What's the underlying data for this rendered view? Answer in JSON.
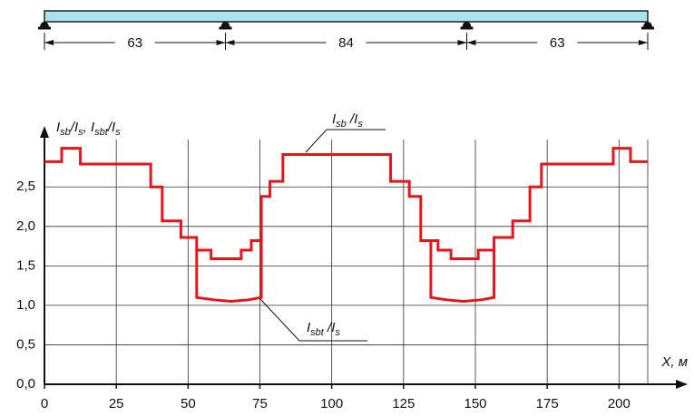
{
  "chart_data": {
    "type": "line",
    "step": true,
    "beam": {
      "spans": [
        63,
        84,
        63
      ],
      "color": "#a9e4ee"
    },
    "y_label_parts": [
      {
        "t": "I"
      },
      {
        "t": "sb",
        "sub": true
      },
      {
        "t": "/I"
      },
      {
        "t": "s",
        "sub": true
      },
      {
        "t": ", I"
      },
      {
        "t": "sbt",
        "sub": true
      },
      {
        "t": "/I"
      },
      {
        "t": "s",
        "sub": true
      }
    ],
    "x_label": "X, м",
    "xlim": [
      0,
      210
    ],
    "ylim": [
      0,
      3.1
    ],
    "xticks": [
      0,
      25,
      50,
      75,
      100,
      125,
      150,
      175,
      200
    ],
    "yticks": [
      {
        "value": 0,
        "label": "0,0"
      },
      {
        "value": 0.5,
        "label": "0,5"
      },
      {
        "value": 1,
        "label": "1,0"
      },
      {
        "value": 1.5,
        "label": "1,5"
      },
      {
        "value": 2,
        "label": "2,0"
      },
      {
        "value": 2.5,
        "label": "2,5"
      }
    ],
    "grid": true,
    "series": [
      {
        "name_parts": [
          {
            "t": "I"
          },
          {
            "t": "sb",
            "sub": true
          },
          {
            "t": " /I"
          },
          {
            "t": "s",
            "sub": true
          }
        ],
        "color": "#e3161b",
        "x": [
          0,
          6,
          6,
          12.5,
          12.5,
          37,
          37,
          41,
          41,
          47.5,
          47.5,
          53,
          53,
          58,
          58,
          68.5,
          68.5,
          72,
          72,
          75.5,
          75.5,
          78.5,
          78.5,
          83,
          83,
          120.5,
          120.5,
          127,
          127,
          131,
          131,
          137,
          137,
          141.5,
          141.5,
          151,
          151,
          156.5,
          156.5,
          163,
          163,
          169,
          169,
          173,
          173,
          198,
          198,
          204,
          204,
          210
        ],
        "values": [
          2.82,
          2.82,
          2.99,
          2.99,
          2.79,
          2.79,
          2.5,
          2.5,
          2.07,
          2.07,
          1.86,
          1.86,
          1.7,
          1.7,
          1.59,
          1.59,
          1.7,
          1.7,
          1.82,
          1.82,
          2.38,
          2.38,
          2.57,
          2.57,
          2.91,
          2.91,
          2.57,
          2.57,
          2.38,
          2.38,
          1.82,
          1.82,
          1.7,
          1.7,
          1.59,
          1.59,
          1.7,
          1.7,
          1.86,
          1.86,
          2.07,
          2.07,
          2.5,
          2.5,
          2.79,
          2.79,
          2.99,
          2.99,
          2.82,
          2.82
        ]
      },
      {
        "name_parts": [
          {
            "t": "I"
          },
          {
            "t": "sbt",
            "sub": true
          },
          {
            "t": " /I"
          },
          {
            "t": "s",
            "sub": true
          }
        ],
        "color": "#e3161b",
        "x": [
          53,
          53,
          59,
          65,
          71,
          75.5,
          75.5,
          105,
          134.5,
          134.5,
          140,
          146,
          152,
          156.5,
          156.5
        ],
        "values": [
          1.7,
          1.1,
          1.07,
          1.05,
          1.07,
          1.1,
          1.82,
          null,
          1.82,
          1.1,
          1.07,
          1.05,
          1.07,
          1.1,
          1.7
        ]
      }
    ]
  }
}
